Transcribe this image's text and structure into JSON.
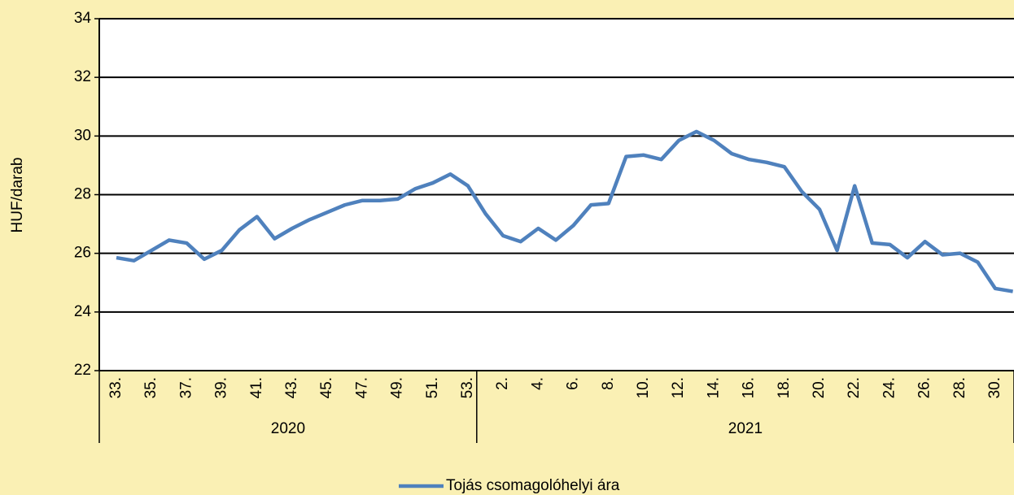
{
  "chart_data": {
    "type": "line",
    "y_label": "HUF/darab",
    "categories": [
      "33.",
      null,
      "35.",
      null,
      "37.",
      null,
      "39.",
      null,
      "41.",
      null,
      "43.",
      null,
      "45.",
      null,
      "47.",
      null,
      "49.",
      null,
      "51.",
      null,
      "53.",
      null,
      "2.",
      null,
      "4.",
      null,
      "6.",
      null,
      "8.",
      null,
      "10.",
      null,
      "12.",
      null,
      "14.",
      null,
      "16.",
      null,
      "18.",
      null,
      "20.",
      null,
      "22.",
      null,
      "24.",
      null,
      "26.",
      null,
      "28.",
      null,
      "30.",
      null
    ],
    "x_groups": [
      "2020",
      "2021"
    ],
    "series": [
      {
        "name": "Tojás csomagolóhelyi ára",
        "color": "#4f81bd",
        "values": [
          25.85,
          25.75,
          26.1,
          26.45,
          26.35,
          25.8,
          26.1,
          26.8,
          27.25,
          26.5,
          26.85,
          27.15,
          27.4,
          27.65,
          27.8,
          27.8,
          27.85,
          28.2,
          28.4,
          28.7,
          28.3,
          27.35,
          26.6,
          26.4,
          26.85,
          26.45,
          26.95,
          27.65,
          27.7,
          29.3,
          29.35,
          29.2,
          29.85,
          30.15,
          29.85,
          29.4,
          29.2,
          29.1,
          28.95,
          28.1,
          27.5,
          26.1,
          28.3,
          26.35,
          26.3,
          25.85,
          26.4,
          25.95,
          26.0,
          25.7,
          24.8,
          24.7
        ]
      }
    ],
    "ylim": [
      22,
      34
    ],
    "yticks": [
      22,
      24,
      26,
      28,
      30,
      32,
      34
    ],
    "grid": true,
    "legend": "bottom"
  }
}
